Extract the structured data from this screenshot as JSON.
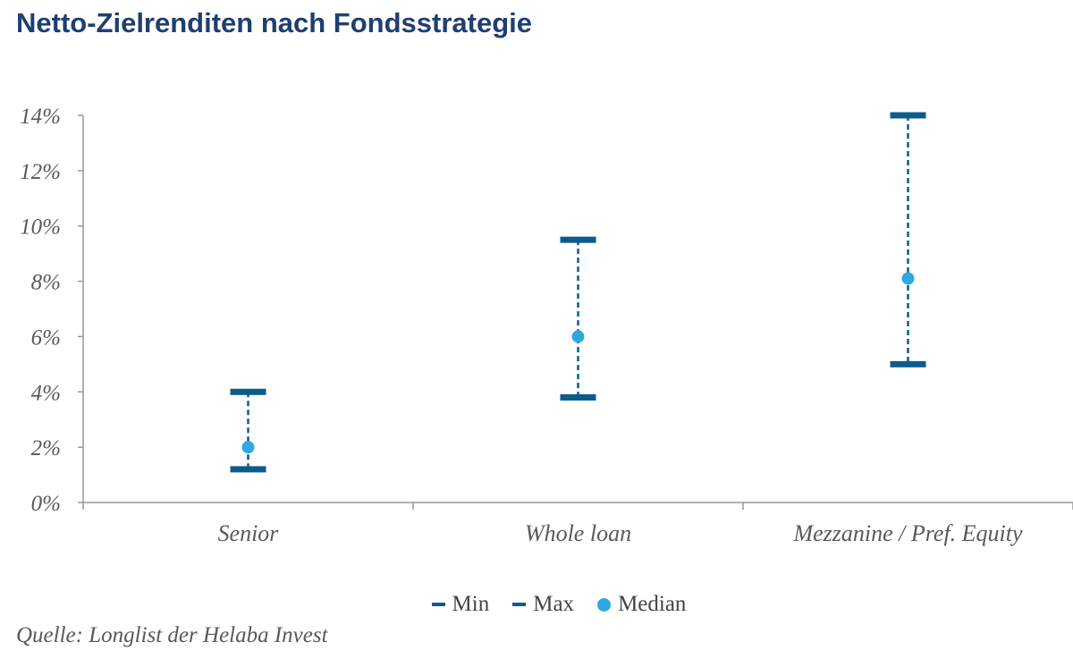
{
  "title": "Netto-Zielrenditen nach Fondsstrategie",
  "legend": {
    "min": "Min",
    "max": "Max",
    "median": "Median"
  },
  "source": "Quelle: Longlist der Helaba Invest",
  "colors": {
    "range": "#0b5c8a",
    "median": "#2fa8e0",
    "axis": "#999999",
    "title": "#1f3f73"
  },
  "chart_data": {
    "type": "scatter",
    "title": "Netto-Zielrenditen nach Fondsstrategie",
    "xlabel": "",
    "ylabel": "",
    "categories": [
      "Senior",
      "Whole loan",
      "Mezzanine / Pref. Equity"
    ],
    "series": [
      {
        "name": "Min",
        "values": [
          1.2,
          3.8,
          5.0
        ]
      },
      {
        "name": "Max",
        "values": [
          4.0,
          9.5,
          14.0
        ]
      },
      {
        "name": "Median",
        "values": [
          2.0,
          6.0,
          8.1
        ]
      }
    ],
    "ylim": [
      0,
      14
    ],
    "yticks": [
      0,
      2,
      4,
      6,
      8,
      10,
      12,
      14
    ],
    "ytick_labels": [
      "0%",
      "2%",
      "4%",
      "6%",
      "8%",
      "10%",
      "12%",
      "14%"
    ],
    "grid": false,
    "legend_position": "bottom"
  }
}
